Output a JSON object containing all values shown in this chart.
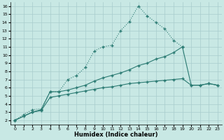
{
  "xlabel": "Humidex (Indice chaleur)",
  "bg_color": "#c8e8e4",
  "grid_color": "#a8cccc",
  "line_color": "#2a7a72",
  "xlim": [
    -0.5,
    23.5
  ],
  "ylim": [
    1.5,
    16.5
  ],
  "xticks": [
    0,
    1,
    2,
    3,
    4,
    5,
    6,
    7,
    8,
    9,
    10,
    11,
    12,
    13,
    14,
    15,
    16,
    17,
    18,
    19,
    20,
    21,
    22,
    23
  ],
  "yticks": [
    2,
    3,
    4,
    5,
    6,
    7,
    8,
    9,
    10,
    11,
    12,
    13,
    14,
    15,
    16
  ],
  "curve1_x": [
    0,
    1,
    2,
    3,
    4,
    5,
    6,
    7,
    8,
    9,
    10,
    11,
    12,
    13,
    14,
    15,
    16,
    17,
    18,
    19
  ],
  "curve1_y": [
    2.0,
    2.7,
    3.3,
    3.4,
    5.5,
    5.5,
    7.0,
    7.5,
    8.5,
    10.5,
    11.0,
    11.2,
    13.0,
    14.1,
    16.0,
    14.8,
    14.0,
    13.2,
    11.8,
    11.0
  ],
  "curve2_x": [
    0,
    2,
    3,
    4,
    5,
    6,
    7,
    8,
    9,
    10,
    11,
    12,
    13,
    14,
    15,
    16,
    17,
    18,
    19,
    20,
    21,
    22,
    23
  ],
  "curve2_y": [
    2.0,
    3.0,
    3.3,
    5.5,
    5.5,
    5.7,
    6.0,
    6.3,
    6.8,
    7.2,
    7.5,
    7.8,
    8.2,
    8.7,
    9.0,
    9.5,
    9.8,
    10.3,
    11.0,
    6.3,
    6.3,
    6.5,
    6.3
  ],
  "curve3_x": [
    0,
    1,
    2,
    3,
    4,
    5,
    6,
    7,
    8,
    9,
    10,
    11,
    12,
    13,
    14,
    15,
    16,
    17,
    18,
    19,
    20,
    21,
    22,
    23
  ],
  "curve3_y": [
    2.0,
    2.5,
    3.0,
    3.2,
    4.8,
    5.0,
    5.2,
    5.4,
    5.6,
    5.8,
    6.0,
    6.1,
    6.3,
    6.5,
    6.6,
    6.7,
    6.8,
    6.9,
    7.0,
    7.1,
    6.3,
    6.3,
    6.5,
    6.3
  ]
}
